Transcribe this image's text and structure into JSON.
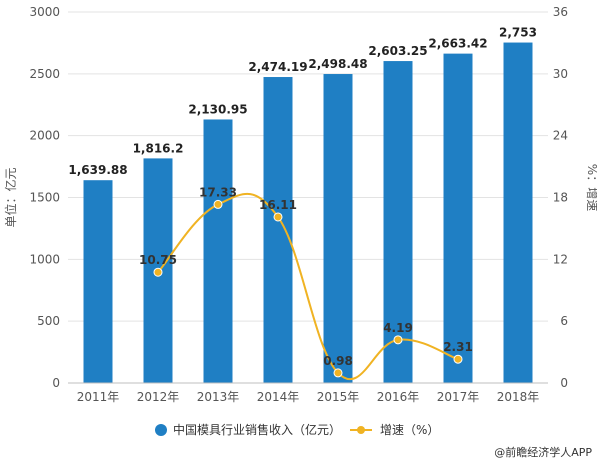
{
  "chart_data": {
    "type": "bar+line",
    "categories": [
      "2011年",
      "2012年",
      "2013年",
      "2014年",
      "2015年",
      "2016年",
      "2017年",
      "2018年"
    ],
    "series": [
      {
        "name": "中国模具行业销售收入（亿元）",
        "type": "bar",
        "axis": "left",
        "values": [
          1639.88,
          1816.2,
          2130.95,
          2474.19,
          2498.48,
          2603.25,
          2663.42,
          2753
        ],
        "labels": [
          "1,639.88",
          "1,816.2",
          "2,130.95",
          "2,474.19",
          "2,498.48",
          "2,603.25",
          "2,663.42",
          "2,753"
        ],
        "color": "#1f7fc4"
      },
      {
        "name": "增速（%）",
        "type": "line",
        "axis": "right",
        "values": [
          null,
          10.75,
          17.33,
          16.11,
          0.98,
          4.19,
          2.31,
          null
        ],
        "labels": [
          "",
          "10.75",
          "17.33",
          "16.11",
          "0.98",
          "4.19",
          "2.31",
          ""
        ],
        "color": "#f0b323"
      }
    ],
    "ylabel": "单位：亿元",
    "y2label": "%：增速",
    "ylim": [
      0,
      3000
    ],
    "yticks": [
      "0",
      "500",
      "1000",
      "1500",
      "2000",
      "2500",
      "3000"
    ],
    "y2lim": [
      0,
      36
    ],
    "y2ticks": [
      "0",
      "6",
      "12",
      "18",
      "24",
      "30",
      "36"
    ],
    "grid": true,
    "legend_position": "bottom"
  },
  "source": "@前瞻经济学人APP"
}
